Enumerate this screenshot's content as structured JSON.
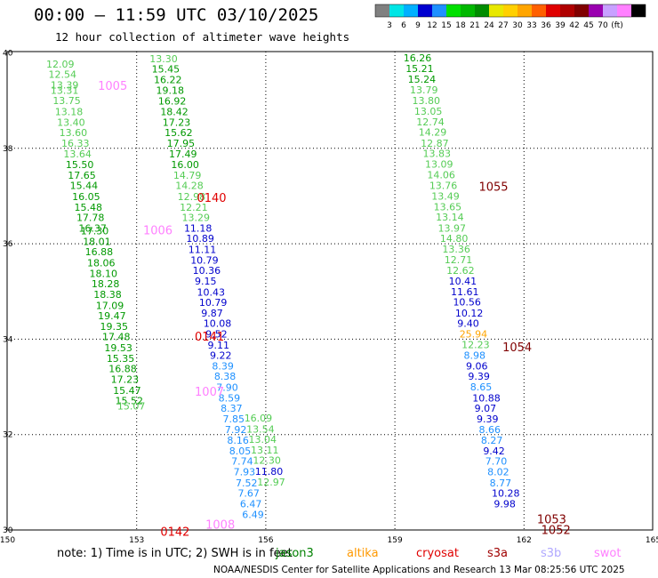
{
  "title": "00:00 – 11:59 UTC 03/10/2025",
  "subtitle": "12 hour collection of altimeter wave heights",
  "legend": {
    "colors": [
      "#808080",
      "#00e5e5",
      "#00b0ff",
      "#0000d0",
      "#1e90ff",
      "#00e000",
      "#00b800",
      "#008c00",
      "#e8e800",
      "#ffd000",
      "#ffa500",
      "#ff6000",
      "#e00000",
      "#b00000",
      "#800000",
      "#9a00b0",
      "#c8a0ff",
      "#ff80ff",
      "#000000"
    ],
    "labels": [
      "3",
      "6",
      "9",
      "12",
      "15",
      "18",
      "21",
      "24",
      "27",
      "30",
      "33",
      "36",
      "39",
      "42",
      "45",
      "70",
      "(ft)"
    ]
  },
  "note": "note: 1) Time is in UTC; 2) SWH is in feet",
  "missions": [
    {
      "name": "jason3",
      "color": "#008000"
    },
    {
      "name": "altika",
      "color": "#ff9900"
    },
    {
      "name": "cryosat",
      "color": "#e00000"
    },
    {
      "name": "s3a",
      "color": "#a00000"
    },
    {
      "name": "s3b",
      "color": "#b0a8ff"
    },
    {
      "name": "swot",
      "color": "#ff80ff"
    }
  ],
  "footer": "NOAA/NESDIS Center for Satellite Applications and Research   13 Mar 08:25:56 UTC 2025",
  "chart_data": {
    "type": "scatter",
    "xlim": [
      150,
      165
    ],
    "ylim": [
      30,
      40
    ],
    "xticks": [
      "150",
      "153",
      "156",
      "159",
      "162",
      "165"
    ],
    "yticks": [
      "30",
      "32",
      "34",
      "36",
      "38",
      "40"
    ],
    "grid": true,
    "points": [
      {
        "x": 150.9,
        "y": 39.77,
        "v": "12.09",
        "c": "#55cc55"
      },
      {
        "x": 150.95,
        "y": 39.55,
        "v": "12.54",
        "c": "#55cc55"
      },
      {
        "x": 151.0,
        "y": 39.33,
        "v": "13.39",
        "c": "#55cc55"
      },
      {
        "x": 151.0,
        "y": 39.22,
        "v": "13.31",
        "c": "#55cc55"
      },
      {
        "x": 151.05,
        "y": 39.0,
        "v": "13.75",
        "c": "#55cc55"
      },
      {
        "x": 151.1,
        "y": 38.77,
        "v": "13.18",
        "c": "#55cc55"
      },
      {
        "x": 151.15,
        "y": 38.55,
        "v": "13.40",
        "c": "#55cc55"
      },
      {
        "x": 151.2,
        "y": 38.33,
        "v": "13.60",
        "c": "#55cc55"
      },
      {
        "x": 151.25,
        "y": 38.11,
        "v": "16.33",
        "c": "#55cc55"
      },
      {
        "x": 151.3,
        "y": 37.88,
        "v": "13.64",
        "c": "#55cc55"
      },
      {
        "x": 151.35,
        "y": 37.66,
        "v": "15.50",
        "c": "#009900"
      },
      {
        "x": 151.4,
        "y": 37.44,
        "v": "17.65",
        "c": "#009900"
      },
      {
        "x": 151.45,
        "y": 37.22,
        "v": "15.44",
        "c": "#009900"
      },
      {
        "x": 151.5,
        "y": 36.99,
        "v": "16.05",
        "c": "#009900"
      },
      {
        "x": 151.55,
        "y": 36.77,
        "v": "15.48",
        "c": "#009900"
      },
      {
        "x": 151.6,
        "y": 36.55,
        "v": "17.78",
        "c": "#009900"
      },
      {
        "x": 151.65,
        "y": 36.33,
        "v": "16.37",
        "c": "#009900"
      },
      {
        "x": 151.7,
        "y": 36.27,
        "v": "17.30",
        "c": "#009900"
      },
      {
        "x": 151.75,
        "y": 36.05,
        "v": "18.01",
        "c": "#009900"
      },
      {
        "x": 151.8,
        "y": 35.83,
        "v": "16.88",
        "c": "#009900"
      },
      {
        "x": 151.85,
        "y": 35.6,
        "v": "18.06",
        "c": "#009900"
      },
      {
        "x": 151.9,
        "y": 35.38,
        "v": "18.10",
        "c": "#009900"
      },
      {
        "x": 151.95,
        "y": 35.16,
        "v": "18.28",
        "c": "#009900"
      },
      {
        "x": 152.0,
        "y": 34.94,
        "v": "18.38",
        "c": "#009900"
      },
      {
        "x": 152.05,
        "y": 34.71,
        "v": "17.09",
        "c": "#009900"
      },
      {
        "x": 152.1,
        "y": 34.49,
        "v": "19.47",
        "c": "#009900"
      },
      {
        "x": 152.15,
        "y": 34.27,
        "v": "19.35",
        "c": "#009900"
      },
      {
        "x": 152.2,
        "y": 34.05,
        "v": "17.48",
        "c": "#009900"
      },
      {
        "x": 152.25,
        "y": 33.82,
        "v": "19.53",
        "c": "#009900"
      },
      {
        "x": 152.3,
        "y": 33.6,
        "v": "15.35",
        "c": "#009900"
      },
      {
        "x": 152.35,
        "y": 33.38,
        "v": "16.88",
        "c": "#009900"
      },
      {
        "x": 152.4,
        "y": 33.16,
        "v": "17.23",
        "c": "#009900"
      },
      {
        "x": 152.45,
        "y": 32.93,
        "v": "15.47",
        "c": "#009900"
      },
      {
        "x": 152.5,
        "y": 32.71,
        "v": "15.52",
        "c": "#009900"
      },
      {
        "x": 152.55,
        "y": 32.6,
        "v": "15.07",
        "c": "#55cc55"
      },
      {
        "x": 153.3,
        "y": 39.88,
        "v": "13.30",
        "c": "#55cc55"
      },
      {
        "x": 153.35,
        "y": 39.66,
        "v": "15.45",
        "c": "#009900"
      },
      {
        "x": 153.4,
        "y": 39.44,
        "v": "16.22",
        "c": "#009900"
      },
      {
        "x": 153.45,
        "y": 39.22,
        "v": "19.18",
        "c": "#009900"
      },
      {
        "x": 153.5,
        "y": 38.99,
        "v": "16.92",
        "c": "#009900"
      },
      {
        "x": 153.55,
        "y": 38.77,
        "v": "18.42",
        "c": "#009900"
      },
      {
        "x": 153.6,
        "y": 38.55,
        "v": "17.23",
        "c": "#009900"
      },
      {
        "x": 153.65,
        "y": 38.33,
        "v": "15.62",
        "c": "#009900"
      },
      {
        "x": 153.7,
        "y": 38.11,
        "v": "17.95",
        "c": "#009900"
      },
      {
        "x": 153.75,
        "y": 37.88,
        "v": "17.49",
        "c": "#009900"
      },
      {
        "x": 153.8,
        "y": 37.66,
        "v": "16.00",
        "c": "#009900"
      },
      {
        "x": 153.85,
        "y": 37.44,
        "v": "14.79",
        "c": "#55cc55"
      },
      {
        "x": 153.9,
        "y": 37.22,
        "v": "14.28",
        "c": "#55cc55"
      },
      {
        "x": 153.95,
        "y": 36.99,
        "v": "12.98",
        "c": "#55cc55"
      },
      {
        "x": 154.0,
        "y": 36.77,
        "v": "12.21",
        "c": "#55cc55"
      },
      {
        "x": 154.05,
        "y": 36.55,
        "v": "13.29",
        "c": "#55cc55"
      },
      {
        "x": 154.1,
        "y": 36.33,
        "v": "11.18",
        "c": "#0000cc"
      },
      {
        "x": 154.15,
        "y": 36.11,
        "v": "10.89",
        "c": "#0000cc"
      },
      {
        "x": 154.2,
        "y": 35.88,
        "v": "11.11",
        "c": "#0000cc"
      },
      {
        "x": 154.25,
        "y": 35.66,
        "v": "10.79",
        "c": "#0000cc"
      },
      {
        "x": 154.3,
        "y": 35.44,
        "v": "10.36",
        "c": "#0000cc"
      },
      {
        "x": 154.35,
        "y": 35.22,
        "v": "9.15",
        "c": "#0000cc"
      },
      {
        "x": 154.4,
        "y": 34.99,
        "v": "10.43",
        "c": "#0000cc"
      },
      {
        "x": 154.45,
        "y": 34.77,
        "v": "10.79",
        "c": "#0000cc"
      },
      {
        "x": 154.5,
        "y": 34.55,
        "v": "9.87",
        "c": "#0000cc"
      },
      {
        "x": 154.55,
        "y": 34.33,
        "v": "10.08",
        "c": "#0000cc"
      },
      {
        "x": 154.6,
        "y": 34.11,
        "v": "9.52",
        "c": "#0000cc"
      },
      {
        "x": 154.65,
        "y": 33.88,
        "v": "9.11",
        "c": "#0000cc"
      },
      {
        "x": 154.7,
        "y": 33.66,
        "v": "9.22",
        "c": "#0000cc"
      },
      {
        "x": 154.75,
        "y": 33.44,
        "v": "8.39",
        "c": "#1e90ff"
      },
      {
        "x": 154.8,
        "y": 33.22,
        "v": "8.38",
        "c": "#1e90ff"
      },
      {
        "x": 154.85,
        "y": 32.99,
        "v": "7.90",
        "c": "#1e90ff"
      },
      {
        "x": 154.9,
        "y": 32.77,
        "v": "8.59",
        "c": "#1e90ff"
      },
      {
        "x": 154.95,
        "y": 32.55,
        "v": "8.37",
        "c": "#1e90ff"
      },
      {
        "x": 155.0,
        "y": 32.33,
        "v": "7.85",
        "c": "#1e90ff"
      },
      {
        "x": 155.05,
        "y": 32.11,
        "v": "7.92",
        "c": "#1e90ff"
      },
      {
        "x": 155.1,
        "y": 31.88,
        "v": "8.16",
        "c": "#1e90ff"
      },
      {
        "x": 155.15,
        "y": 31.66,
        "v": "8.05",
        "c": "#1e90ff"
      },
      {
        "x": 155.2,
        "y": 31.44,
        "v": "7.74",
        "c": "#1e90ff"
      },
      {
        "x": 155.25,
        "y": 31.22,
        "v": "7.93",
        "c": "#1e90ff"
      },
      {
        "x": 155.3,
        "y": 30.99,
        "v": "7.52",
        "c": "#1e90ff"
      },
      {
        "x": 155.35,
        "y": 30.77,
        "v": "7.67",
        "c": "#1e90ff"
      },
      {
        "x": 155.4,
        "y": 30.55,
        "v": "6.47",
        "c": "#1e90ff"
      },
      {
        "x": 155.45,
        "y": 30.33,
        "v": "6.49",
        "c": "#1e90ff"
      },
      {
        "x": 155.5,
        "y": 32.35,
        "v": "16.09",
        "c": "#55cc55"
      },
      {
        "x": 155.55,
        "y": 32.12,
        "v": "13.54",
        "c": "#55cc55"
      },
      {
        "x": 155.6,
        "y": 31.9,
        "v": "13.04",
        "c": "#55cc55"
      },
      {
        "x": 155.65,
        "y": 31.68,
        "v": "13.11",
        "c": "#55cc55"
      },
      {
        "x": 155.7,
        "y": 31.46,
        "v": "12.30",
        "c": "#55cc55"
      },
      {
        "x": 155.75,
        "y": 31.23,
        "v": "11.80",
        "c": "#0000cc"
      },
      {
        "x": 155.8,
        "y": 31.01,
        "v": "12.97",
        "c": "#55cc55"
      },
      {
        "x": 159.2,
        "y": 39.9,
        "v": "16.26",
        "c": "#009900"
      },
      {
        "x": 159.25,
        "y": 39.67,
        "v": "15.21",
        "c": "#009900"
      },
      {
        "x": 159.3,
        "y": 39.45,
        "v": "15.24",
        "c": "#009900"
      },
      {
        "x": 159.35,
        "y": 39.23,
        "v": "13.79",
        "c": "#55cc55"
      },
      {
        "x": 159.4,
        "y": 39.0,
        "v": "13.80",
        "c": "#55cc55"
      },
      {
        "x": 159.45,
        "y": 38.78,
        "v": "13.05",
        "c": "#55cc55"
      },
      {
        "x": 159.5,
        "y": 38.56,
        "v": "12.74",
        "c": "#55cc55"
      },
      {
        "x": 159.55,
        "y": 38.34,
        "v": "14.29",
        "c": "#55cc55"
      },
      {
        "x": 159.6,
        "y": 38.11,
        "v": "12.87",
        "c": "#55cc55"
      },
      {
        "x": 159.65,
        "y": 37.89,
        "v": "13.83",
        "c": "#55cc55"
      },
      {
        "x": 159.7,
        "y": 37.67,
        "v": "13.09",
        "c": "#55cc55"
      },
      {
        "x": 159.75,
        "y": 37.45,
        "v": "14.06",
        "c": "#55cc55"
      },
      {
        "x": 159.8,
        "y": 37.22,
        "v": "13.76",
        "c": "#55cc55"
      },
      {
        "x": 159.85,
        "y": 37.0,
        "v": "13.49",
        "c": "#55cc55"
      },
      {
        "x": 159.9,
        "y": 36.78,
        "v": "13.65",
        "c": "#55cc55"
      },
      {
        "x": 159.95,
        "y": 36.56,
        "v": "13.14",
        "c": "#55cc55"
      },
      {
        "x": 160.0,
        "y": 36.33,
        "v": "13.97",
        "c": "#55cc55"
      },
      {
        "x": 160.05,
        "y": 36.11,
        "v": "14.80",
        "c": "#55cc55"
      },
      {
        "x": 160.1,
        "y": 35.89,
        "v": "13.36",
        "c": "#55cc55"
      },
      {
        "x": 160.15,
        "y": 35.67,
        "v": "12.71",
        "c": "#55cc55"
      },
      {
        "x": 160.2,
        "y": 35.44,
        "v": "12.62",
        "c": "#55cc55"
      },
      {
        "x": 160.25,
        "y": 35.22,
        "v": "10.41",
        "c": "#0000cc"
      },
      {
        "x": 160.3,
        "y": 35.0,
        "v": "11.61",
        "c": "#0000cc"
      },
      {
        "x": 160.35,
        "y": 34.78,
        "v": "10.56",
        "c": "#0000cc"
      },
      {
        "x": 160.4,
        "y": 34.55,
        "v": "10.12",
        "c": "#0000cc"
      },
      {
        "x": 160.45,
        "y": 34.33,
        "v": "9.40",
        "c": "#0000cc"
      },
      {
        "x": 160.5,
        "y": 34.11,
        "v": "25.94",
        "c": "#ffa500"
      },
      {
        "x": 160.55,
        "y": 33.89,
        "v": "12.23",
        "c": "#55cc55"
      },
      {
        "x": 160.6,
        "y": 33.66,
        "v": "8.98",
        "c": "#1e90ff"
      },
      {
        "x": 160.65,
        "y": 33.44,
        "v": "9.06",
        "c": "#0000cc"
      },
      {
        "x": 160.7,
        "y": 33.22,
        "v": "9.39",
        "c": "#0000cc"
      },
      {
        "x": 160.75,
        "y": 33.0,
        "v": "8.65",
        "c": "#1e90ff"
      },
      {
        "x": 160.8,
        "y": 32.77,
        "v": "10.88",
        "c": "#0000cc"
      },
      {
        "x": 160.85,
        "y": 32.55,
        "v": "9.07",
        "c": "#0000cc"
      },
      {
        "x": 160.9,
        "y": 32.33,
        "v": "9.39",
        "c": "#0000cc"
      },
      {
        "x": 160.95,
        "y": 32.11,
        "v": "8.66",
        "c": "#1e90ff"
      },
      {
        "x": 161.0,
        "y": 31.88,
        "v": "8.27",
        "c": "#1e90ff"
      },
      {
        "x": 161.05,
        "y": 31.66,
        "v": "9.42",
        "c": "#0000cc"
      },
      {
        "x": 161.1,
        "y": 31.44,
        "v": "7.70",
        "c": "#1e90ff"
      },
      {
        "x": 161.15,
        "y": 31.22,
        "v": "8.02",
        "c": "#1e90ff"
      },
      {
        "x": 161.2,
        "y": 30.99,
        "v": "8.77",
        "c": "#1e90ff"
      },
      {
        "x": 161.25,
        "y": 30.77,
        "v": "10.28",
        "c": "#0000cc"
      },
      {
        "x": 161.3,
        "y": 30.55,
        "v": "9.98",
        "c": "#0000cc"
      }
    ],
    "tracks": [
      {
        "x": 152.1,
        "y": 39.32,
        "v": "1005",
        "c": "#ff80ff"
      },
      {
        "x": 154.4,
        "y": 36.97,
        "v": "0140",
        "c": "#e00000"
      },
      {
        "x": 153.15,
        "y": 36.29,
        "v": "1006",
        "c": "#ff80ff"
      },
      {
        "x": 154.35,
        "y": 34.06,
        "v": "0141",
        "c": "#e00000"
      },
      {
        "x": 154.35,
        "y": 32.91,
        "v": "1007",
        "c": "#ff80ff"
      },
      {
        "x": 154.6,
        "y": 30.12,
        "v": "1008",
        "c": "#ff80ff"
      },
      {
        "x": 153.55,
        "y": 29.97,
        "v": "0142",
        "c": "#e00000"
      },
      {
        "x": 160.95,
        "y": 37.2,
        "v": "1055",
        "c": "#800000"
      },
      {
        "x": 161.5,
        "y": 33.84,
        "v": "1054",
        "c": "#800000"
      },
      {
        "x": 162.3,
        "y": 30.23,
        "v": "1053",
        "c": "#800000"
      },
      {
        "x": 162.4,
        "y": 30.01,
        "v": "1052",
        "c": "#800000"
      }
    ]
  }
}
